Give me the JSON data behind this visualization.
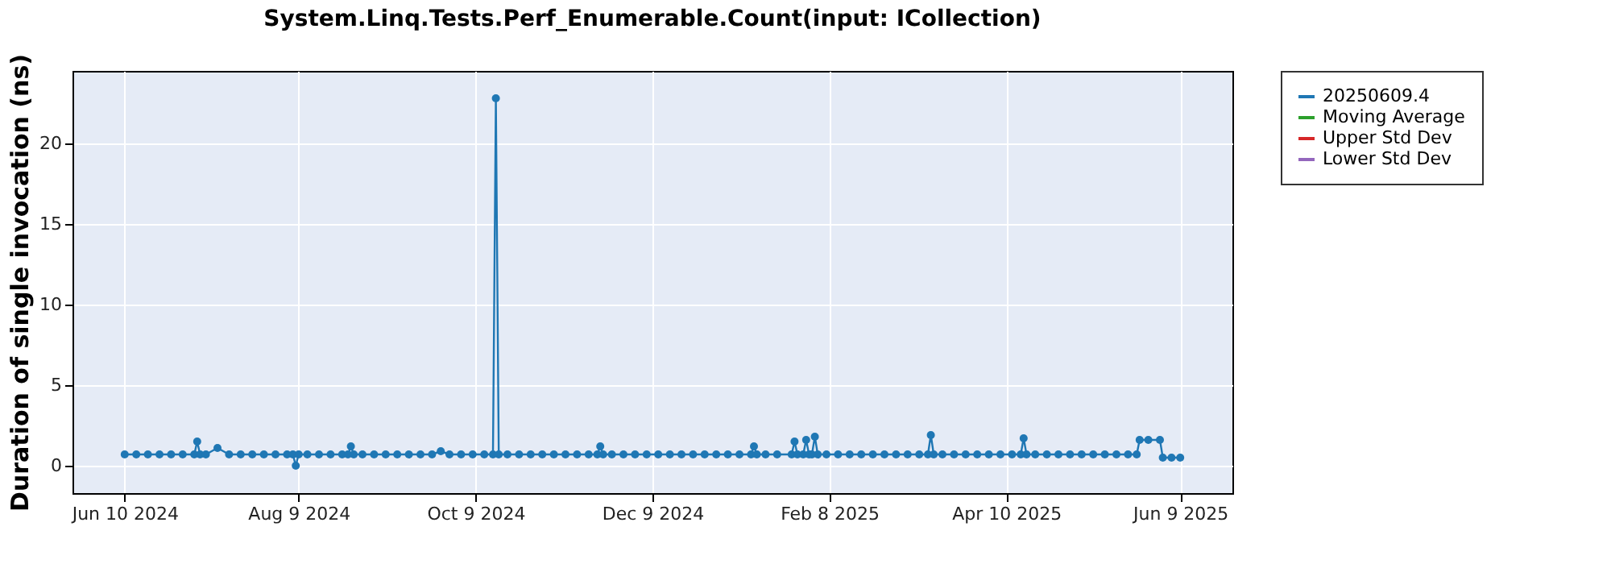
{
  "chart_data": {
    "type": "line",
    "title": "System.Linq.Tests.Perf_Enumerable.Count(input: ICollection)",
    "ylabel": "Duration of single invocation (ns)",
    "x": [
      "2024-06-10",
      "2024-06-14",
      "2024-06-18",
      "2024-06-22",
      "2024-06-26",
      "2024-06-30",
      "2024-07-04",
      "2024-07-05",
      "2024-07-06",
      "2024-07-08",
      "2024-07-12",
      "2024-07-16",
      "2024-07-20",
      "2024-07-24",
      "2024-07-28",
      "2024-08-01",
      "2024-08-05",
      "2024-08-07",
      "2024-08-08",
      "2024-08-09",
      "2024-08-12",
      "2024-08-16",
      "2024-08-20",
      "2024-08-24",
      "2024-08-26",
      "2024-08-27",
      "2024-08-28",
      "2024-08-31",
      "2024-09-04",
      "2024-09-08",
      "2024-09-12",
      "2024-09-16",
      "2024-09-20",
      "2024-09-24",
      "2024-09-27",
      "2024-09-30",
      "2024-10-04",
      "2024-10-08",
      "2024-10-12",
      "2024-10-15",
      "2024-10-16",
      "2024-10-17",
      "2024-10-20",
      "2024-10-24",
      "2024-10-28",
      "2024-11-01",
      "2024-11-05",
      "2024-11-09",
      "2024-11-13",
      "2024-11-17",
      "2024-11-20",
      "2024-11-21",
      "2024-11-22",
      "2024-11-25",
      "2024-11-29",
      "2024-12-03",
      "2024-12-07",
      "2024-12-11",
      "2024-12-15",
      "2024-12-19",
      "2024-12-23",
      "2024-12-27",
      "2024-12-31",
      "2025-01-04",
      "2025-01-08",
      "2025-01-12",
      "2025-01-13",
      "2025-01-14",
      "2025-01-17",
      "2025-01-21",
      "2025-01-26",
      "2025-01-27",
      "2025-01-28",
      "2025-01-30",
      "2025-01-31",
      "2025-02-01",
      "2025-02-02",
      "2025-02-03",
      "2025-02-04",
      "2025-02-07",
      "2025-02-11",
      "2025-02-15",
      "2025-02-19",
      "2025-02-23",
      "2025-02-27",
      "2025-03-03",
      "2025-03-07",
      "2025-03-11",
      "2025-03-14",
      "2025-03-15",
      "2025-03-16",
      "2025-03-19",
      "2025-03-23",
      "2025-03-27",
      "2025-03-31",
      "2025-04-04",
      "2025-04-08",
      "2025-04-12",
      "2025-04-15",
      "2025-04-16",
      "2025-04-17",
      "2025-04-20",
      "2025-04-24",
      "2025-04-28",
      "2025-05-02",
      "2025-05-06",
      "2025-05-10",
      "2025-05-14",
      "2025-05-18",
      "2025-05-22",
      "2025-05-25",
      "2025-05-26",
      "2025-05-29",
      "2025-06-02",
      "2025-06-03",
      "2025-06-06",
      "2025-06-09"
    ],
    "series": [
      {
        "name": "20250609.4",
        "color": "#1f77b4",
        "values": [
          0.7,
          0.7,
          0.7,
          0.7,
          0.7,
          0.7,
          0.7,
          1.5,
          0.7,
          0.7,
          1.1,
          0.7,
          0.7,
          0.7,
          0.7,
          0.7,
          0.7,
          0.7,
          0.0,
          0.7,
          0.7,
          0.7,
          0.7,
          0.7,
          0.7,
          1.2,
          0.7,
          0.7,
          0.7,
          0.7,
          0.7,
          0.7,
          0.7,
          0.7,
          0.9,
          0.7,
          0.7,
          0.7,
          0.7,
          0.7,
          22.8,
          0.7,
          0.7,
          0.7,
          0.7,
          0.7,
          0.7,
          0.7,
          0.7,
          0.7,
          0.7,
          1.2,
          0.7,
          0.7,
          0.7,
          0.7,
          0.7,
          0.7,
          0.7,
          0.7,
          0.7,
          0.7,
          0.7,
          0.7,
          0.7,
          0.7,
          1.2,
          0.7,
          0.7,
          0.7,
          0.7,
          1.5,
          0.7,
          0.7,
          1.6,
          0.7,
          0.7,
          1.8,
          0.7,
          0.7,
          0.7,
          0.7,
          0.7,
          0.7,
          0.7,
          0.7,
          0.7,
          0.7,
          0.7,
          1.9,
          0.7,
          0.7,
          0.7,
          0.7,
          0.7,
          0.7,
          0.7,
          0.7,
          0.7,
          1.7,
          0.7,
          0.7,
          0.7,
          0.7,
          0.7,
          0.7,
          0.7,
          0.7,
          0.7,
          0.7,
          0.7,
          1.6,
          1.6,
          1.6,
          0.5,
          0.5,
          0.5
        ]
      },
      {
        "name": "Moving Average",
        "color": "#2ca02c",
        "values": [
          null,
          null,
          null,
          null,
          null,
          null,
          null,
          null,
          null,
          null,
          null,
          null,
          null,
          null,
          null,
          null,
          null,
          null,
          null,
          null,
          null,
          null,
          null,
          null,
          null,
          null,
          null,
          null,
          null,
          null,
          null,
          null,
          null,
          null,
          null,
          null,
          null,
          null,
          null,
          null,
          null,
          null,
          null,
          null,
          null,
          null,
          null,
          null,
          null,
          null,
          null,
          null,
          null,
          null,
          null,
          null,
          null,
          null,
          null,
          null,
          null,
          null,
          null,
          null,
          null,
          null,
          null,
          null,
          null,
          null,
          null,
          null,
          null,
          null,
          null,
          null,
          null,
          null,
          null,
          null,
          null,
          null,
          null,
          null,
          null,
          null,
          null,
          null,
          null,
          null,
          null,
          null,
          null,
          null,
          null,
          null,
          null,
          null,
          null,
          null,
          null,
          null,
          null,
          null,
          null,
          null,
          null,
          null,
          null,
          null,
          null,
          null,
          null,
          null,
          null,
          null,
          null
        ]
      },
      {
        "name": "Upper Std Dev",
        "color": "#d62728",
        "values": [
          null,
          null,
          null,
          null,
          null,
          null,
          null,
          null,
          null,
          null,
          null,
          null,
          null,
          null,
          null,
          null,
          null,
          null,
          null,
          null,
          null,
          null,
          null,
          null,
          null,
          null,
          null,
          null,
          null,
          null,
          null,
          null,
          null,
          null,
          null,
          null,
          null,
          null,
          null,
          null,
          null,
          null,
          null,
          null,
          null,
          null,
          null,
          null,
          null,
          null,
          null,
          null,
          null,
          null,
          null,
          null,
          null,
          null,
          null,
          null,
          null,
          null,
          null,
          null,
          null,
          null,
          null,
          null,
          null,
          null,
          null,
          null,
          null,
          null,
          null,
          null,
          null,
          null,
          null,
          null,
          null,
          null,
          null,
          null,
          null,
          null,
          null,
          null,
          null,
          null,
          null,
          null,
          null,
          null,
          null,
          null,
          null,
          null,
          null,
          null,
          null,
          null,
          null,
          null,
          null,
          null,
          null,
          null,
          null,
          null,
          null,
          null,
          null,
          null,
          null,
          null,
          null
        ]
      },
      {
        "name": "Lower Std Dev",
        "color": "#9467bd",
        "values": [
          null,
          null,
          null,
          null,
          null,
          null,
          null,
          null,
          null,
          null,
          null,
          null,
          null,
          null,
          null,
          null,
          null,
          null,
          null,
          null,
          null,
          null,
          null,
          null,
          null,
          null,
          null,
          null,
          null,
          null,
          null,
          null,
          null,
          null,
          null,
          null,
          null,
          null,
          null,
          null,
          null,
          null,
          null,
          null,
          null,
          null,
          null,
          null,
          null,
          null,
          null,
          null,
          null,
          null,
          null,
          null,
          null,
          null,
          null,
          null,
          null,
          null,
          null,
          null,
          null,
          null,
          null,
          null,
          null,
          null,
          null,
          null,
          null,
          null,
          null,
          null,
          null,
          null,
          null,
          null,
          null,
          null,
          null,
          null,
          null,
          null,
          null,
          null,
          null,
          null,
          null,
          null,
          null,
          null,
          null,
          null,
          null,
          null,
          null,
          null,
          null,
          null,
          null,
          null,
          null,
          null,
          null,
          null,
          null,
          null,
          null,
          null,
          null,
          null,
          null,
          null,
          null
        ]
      }
    ],
    "xlim": [
      "2024-05-23",
      "2025-06-27"
    ],
    "xticks": [
      {
        "value": "2024-06-10",
        "label": "Jun 10 2024"
      },
      {
        "value": "2024-08-09",
        "label": "Aug 9 2024"
      },
      {
        "value": "2024-10-09",
        "label": "Oct 9 2024"
      },
      {
        "value": "2024-12-09",
        "label": "Dec 9 2024"
      },
      {
        "value": "2025-02-08",
        "label": "Feb 8 2025"
      },
      {
        "value": "2025-04-10",
        "label": "Apr 10 2025"
      },
      {
        "value": "2025-06-09",
        "label": "Jun 9 2025"
      }
    ],
    "ylim": [
      -1.7,
      24.5
    ],
    "yticks": [
      0,
      5,
      10,
      15,
      20
    ],
    "grid": true,
    "legend": "right",
    "marker": "circle",
    "line_style": "solid"
  }
}
